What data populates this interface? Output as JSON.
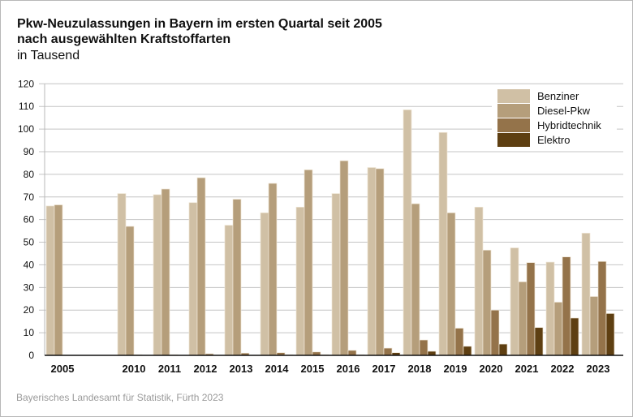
{
  "chart_data": {
    "type": "bar",
    "title": "Pkw-Neuzulassungen in Bayern im ersten Quartal seit 2005",
    "subtitle": "nach ausgewählten Kraftstoffarten",
    "unit": "in Tausend",
    "xlabel": "",
    "ylabel": "",
    "ylim": [
      0,
      120
    ],
    "yticks": [
      0,
      10,
      20,
      30,
      40,
      50,
      60,
      70,
      80,
      90,
      100,
      110,
      120
    ],
    "grid": true,
    "legend_position": "top-right",
    "categories": [
      "2005",
      "2010",
      "2011",
      "2012",
      "2013",
      "2014",
      "2015",
      "2016",
      "2017",
      "2018",
      "2019",
      "2020",
      "2021",
      "2022",
      "2023"
    ],
    "series": [
      {
        "name": "Benziner",
        "color": "#d0c0a5",
        "values": [
          66,
          71.5,
          71,
          67.5,
          57.5,
          63,
          65.5,
          71.5,
          83,
          108.5,
          98.5,
          65.5,
          47.5,
          41.2,
          54
        ]
      },
      {
        "name": "Diesel-Pkw",
        "color": "#b59e7b",
        "values": [
          66.5,
          57,
          73.5,
          78.5,
          69,
          76,
          82,
          86,
          82.5,
          67,
          63,
          46.5,
          32.5,
          23.5,
          26
        ]
      },
      {
        "name": "Hybridtechnik",
        "color": "#94734a",
        "values": [
          0,
          0.3,
          0.3,
          0.7,
          1,
          1.2,
          1.5,
          2.2,
          3.2,
          6.8,
          12,
          20,
          41,
          43.5,
          41.5
        ]
      },
      {
        "name": "Elektro",
        "color": "#5e3f12",
        "values": [
          0,
          0,
          0,
          0,
          0,
          0.3,
          0.3,
          0.3,
          1.2,
          1.8,
          4,
          5,
          12.3,
          16.5,
          18.5
        ]
      }
    ]
  },
  "footer": "Bayerisches Landesamt für Statistik, Fürth 2023"
}
